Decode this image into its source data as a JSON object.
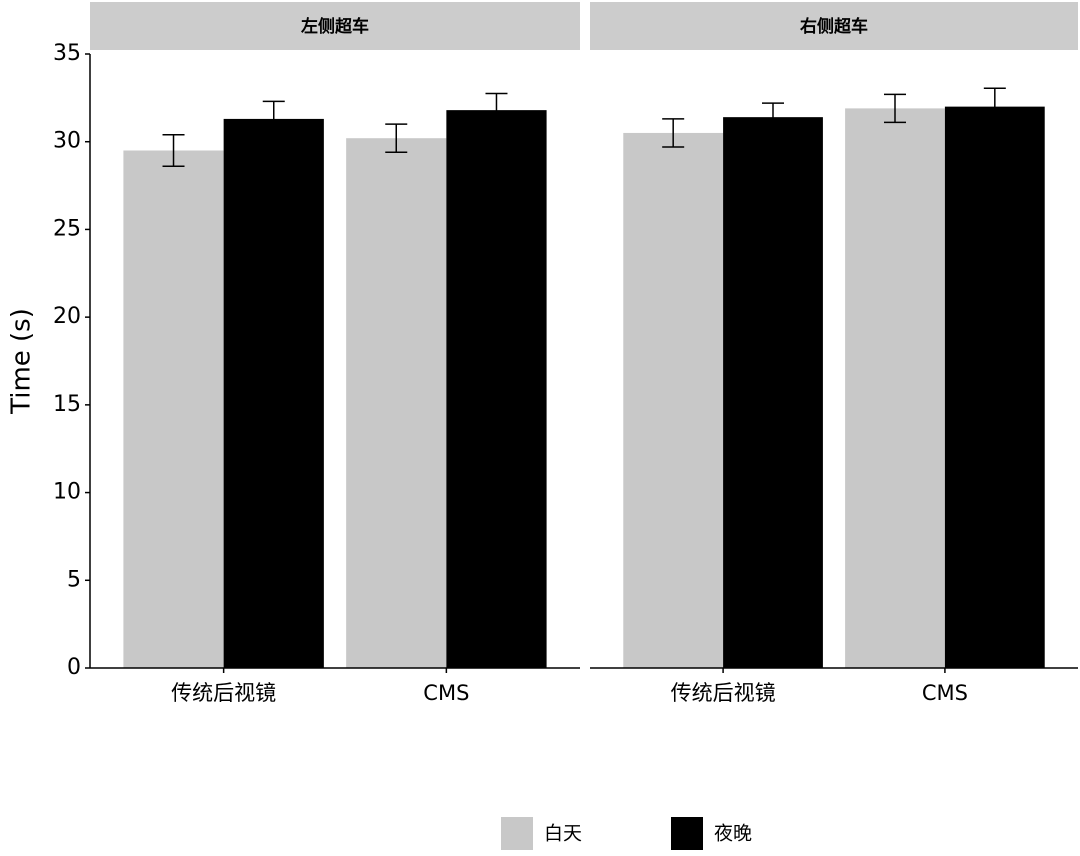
{
  "chart_data": [
    {
      "type": "bar",
      "title": "左侧超车",
      "ylabel": "Time (s)",
      "categories": [
        "传统后视镜",
        "CMS"
      ],
      "series": [
        {
          "name": "白天",
          "color": "#c8c8c8",
          "values": [
            29.5,
            30.2
          ],
          "errors": [
            0.9,
            0.8
          ]
        },
        {
          "name": "夜晚",
          "color": "#000000",
          "values": [
            31.3,
            31.8
          ],
          "errors": [
            1.0,
            0.95
          ]
        }
      ],
      "ylim": [
        0,
        35
      ],
      "yticks": [
        0,
        5,
        10,
        15,
        20,
        25,
        30,
        35
      ]
    },
    {
      "type": "bar",
      "title": "右侧超车",
      "categories": [
        "传统后视镜",
        "CMS"
      ],
      "series": [
        {
          "color": "#c8c8c8",
          "values": [
            30.5,
            31.9
          ],
          "errors": [
            0.8,
            0.8
          ]
        },
        {
          "color": "#000000",
          "values": [
            31.4,
            32.0
          ],
          "errors": [
            0.8,
            1.05
          ]
        }
      ],
      "ylim": [
        0,
        35
      ]
    }
  ]
}
